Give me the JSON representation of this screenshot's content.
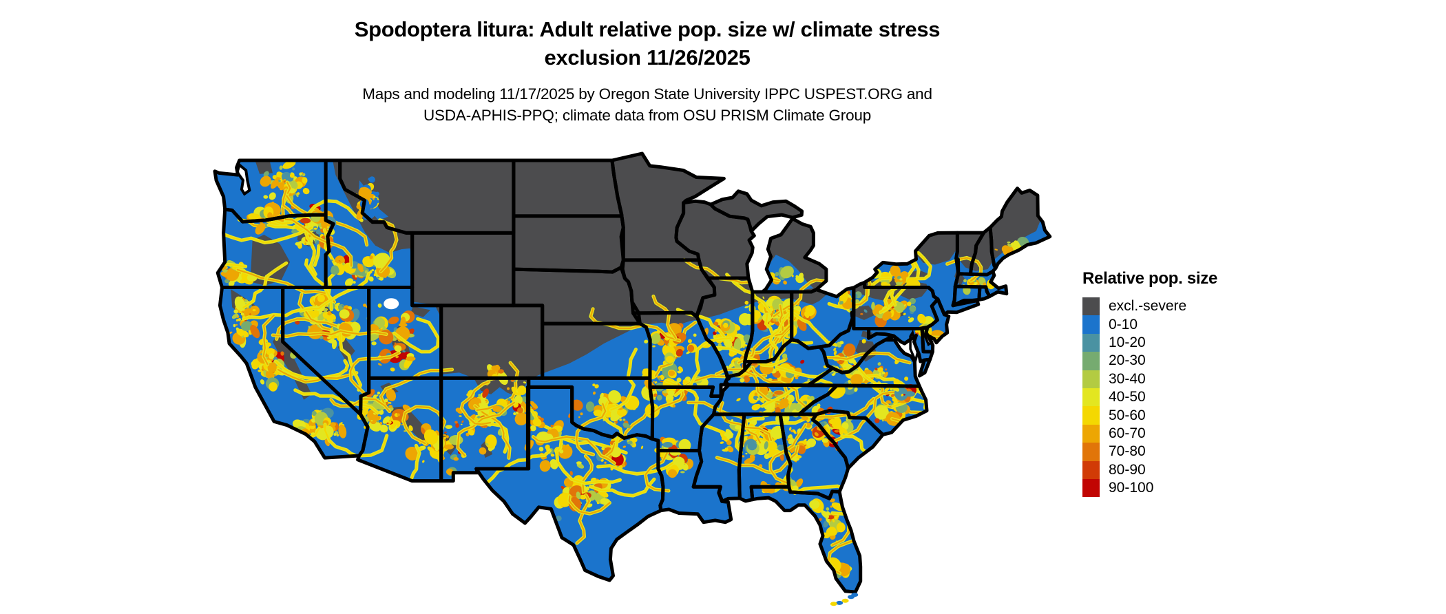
{
  "header": {
    "title_line1": "Spodoptera litura: Adult relative pop. size w/ climate stress",
    "title_line2": "exclusion 11/26/2025",
    "subtitle_line1": "Maps and modeling 11/17/2025 by Oregon State University IPPC USPEST.ORG and",
    "subtitle_line2": "USDA-APHIS-PPQ; climate data from OSU PRISM Climate Group"
  },
  "legend": {
    "title": "Relative pop. size",
    "items": [
      {
        "label": "excl.-severe",
        "color": "#4c4c4e"
      },
      {
        "label": "0-10",
        "color": "#1b74cc"
      },
      {
        "label": "10-20",
        "color": "#4a92a2"
      },
      {
        "label": "20-30",
        "color": "#76ab70"
      },
      {
        "label": "30-40",
        "color": "#b3cb42"
      },
      {
        "label": "40-50",
        "color": "#e3e620"
      },
      {
        "label": "50-60",
        "color": "#f4d801"
      },
      {
        "label": "60-70",
        "color": "#eda603"
      },
      {
        "label": "70-80",
        "color": "#e17509"
      },
      {
        "label": "80-90",
        "color": "#d13b06"
      },
      {
        "label": "90-100",
        "color": "#c10503"
      }
    ]
  },
  "chart_data": {
    "type": "heatmap",
    "title": "Spodoptera litura: Adult relative pop. size w/ climate stress exclusion 11/26/2025",
    "legend_title": "Relative pop. size",
    "classes": [
      "excl.-severe",
      "0-10",
      "10-20",
      "20-30",
      "30-40",
      "40-50",
      "50-60",
      "60-70",
      "70-80",
      "80-90",
      "90-100"
    ],
    "class_colors": [
      "#4c4c4e",
      "#1b74cc",
      "#4a92a2",
      "#76ab70",
      "#b3cb42",
      "#e3e620",
      "#f4d801",
      "#eda603",
      "#e17509",
      "#d13b06",
      "#c10503"
    ],
    "legend_position": "right"
  }
}
